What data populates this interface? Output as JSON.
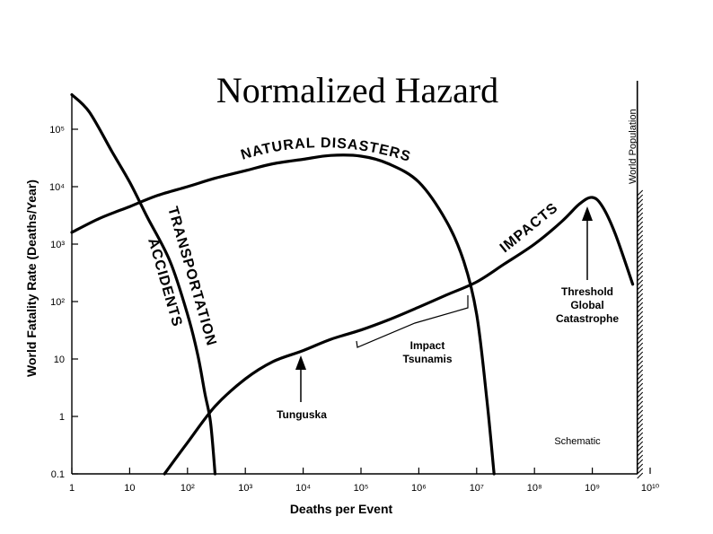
{
  "chart_data": {
    "type": "line",
    "title": "Normalized Hazard",
    "xlabel": "Deaths per Event",
    "ylabel": "World Fatality Rate (Deaths/Year)",
    "x_scale": "log",
    "y_scale": "log",
    "xlim": [
      1,
      10000000000
    ],
    "ylim": [
      0.1,
      1000000
    ],
    "x_ticks": [
      {
        "value": 1,
        "label": "1"
      },
      {
        "value": 10,
        "label": "10"
      },
      {
        "value": 100,
        "label": "10²"
      },
      {
        "value": 1000,
        "label": "10³"
      },
      {
        "value": 10000,
        "label": "10⁴"
      },
      {
        "value": 100000,
        "label": "10⁵"
      },
      {
        "value": 1000000,
        "label": "10⁶"
      },
      {
        "value": 10000000,
        "label": "10⁷"
      },
      {
        "value": 100000000,
        "label": "10⁸"
      },
      {
        "value": 1000000000,
        "label": "10⁹"
      },
      {
        "value": 10000000000,
        "label": "10¹⁰"
      }
    ],
    "y_ticks": [
      {
        "value": 0.1,
        "label": "0.1"
      },
      {
        "value": 1,
        "label": "1"
      },
      {
        "value": 10,
        "label": "10"
      },
      {
        "value": 100,
        "label": "10²"
      },
      {
        "value": 1000,
        "label": "10³"
      },
      {
        "value": 10000,
        "label": "10⁴"
      },
      {
        "value": 100000,
        "label": "10⁵"
      }
    ],
    "series": [
      {
        "name": "NATURAL DISASTERS",
        "x": [
          1,
          3,
          10,
          30,
          100,
          300,
          1000,
          3000,
          10000,
          30000,
          100000,
          300000,
          1000000,
          3000000,
          6000000,
          10000000,
          15000000,
          20000000
        ],
        "y": [
          1600,
          2800,
          4500,
          7000,
          10000,
          14000,
          19000,
          25000,
          30000,
          35000,
          34000,
          25000,
          12000,
          2500,
          500,
          60,
          2,
          0.1
        ]
      },
      {
        "name": "TRANSPORTATION ACCIDENTS",
        "x": [
          1,
          2,
          5,
          10,
          20,
          50,
          100,
          150,
          200,
          250,
          300
        ],
        "y": [
          400000,
          200000,
          40000,
          12000,
          3000,
          500,
          60,
          12,
          2.5,
          0.8,
          0.1
        ]
      },
      {
        "name": "IMPACTS",
        "x": [
          40,
          100,
          300,
          1000,
          3000,
          10000,
          30000,
          100000,
          300000,
          1000000,
          3000000,
          10000000,
          30000000,
          100000000,
          300000000,
          600000000,
          1000000000,
          1500000000,
          2500000000,
          5000000000
        ],
        "y": [
          0.1,
          0.35,
          1.5,
          4.5,
          9,
          14,
          22,
          32,
          48,
          80,
          130,
          220,
          450,
          1000,
          2500,
          5000,
          6500,
          4500,
          1500,
          200
        ]
      }
    ],
    "annotations": [
      {
        "text": "Impact Tsunamis",
        "x_range": [
          10000,
          10000000
        ]
      },
      {
        "text": "Tunguska",
        "x": 10000,
        "y": 10
      },
      {
        "text": "Threshold Global Catastrophe",
        "x": 1000000000,
        "y": 6000
      }
    ],
    "world_population_label": "World Population",
    "world_population_x": 6000000000,
    "note": "Schematic",
    "grid": false,
    "legend": "none"
  }
}
